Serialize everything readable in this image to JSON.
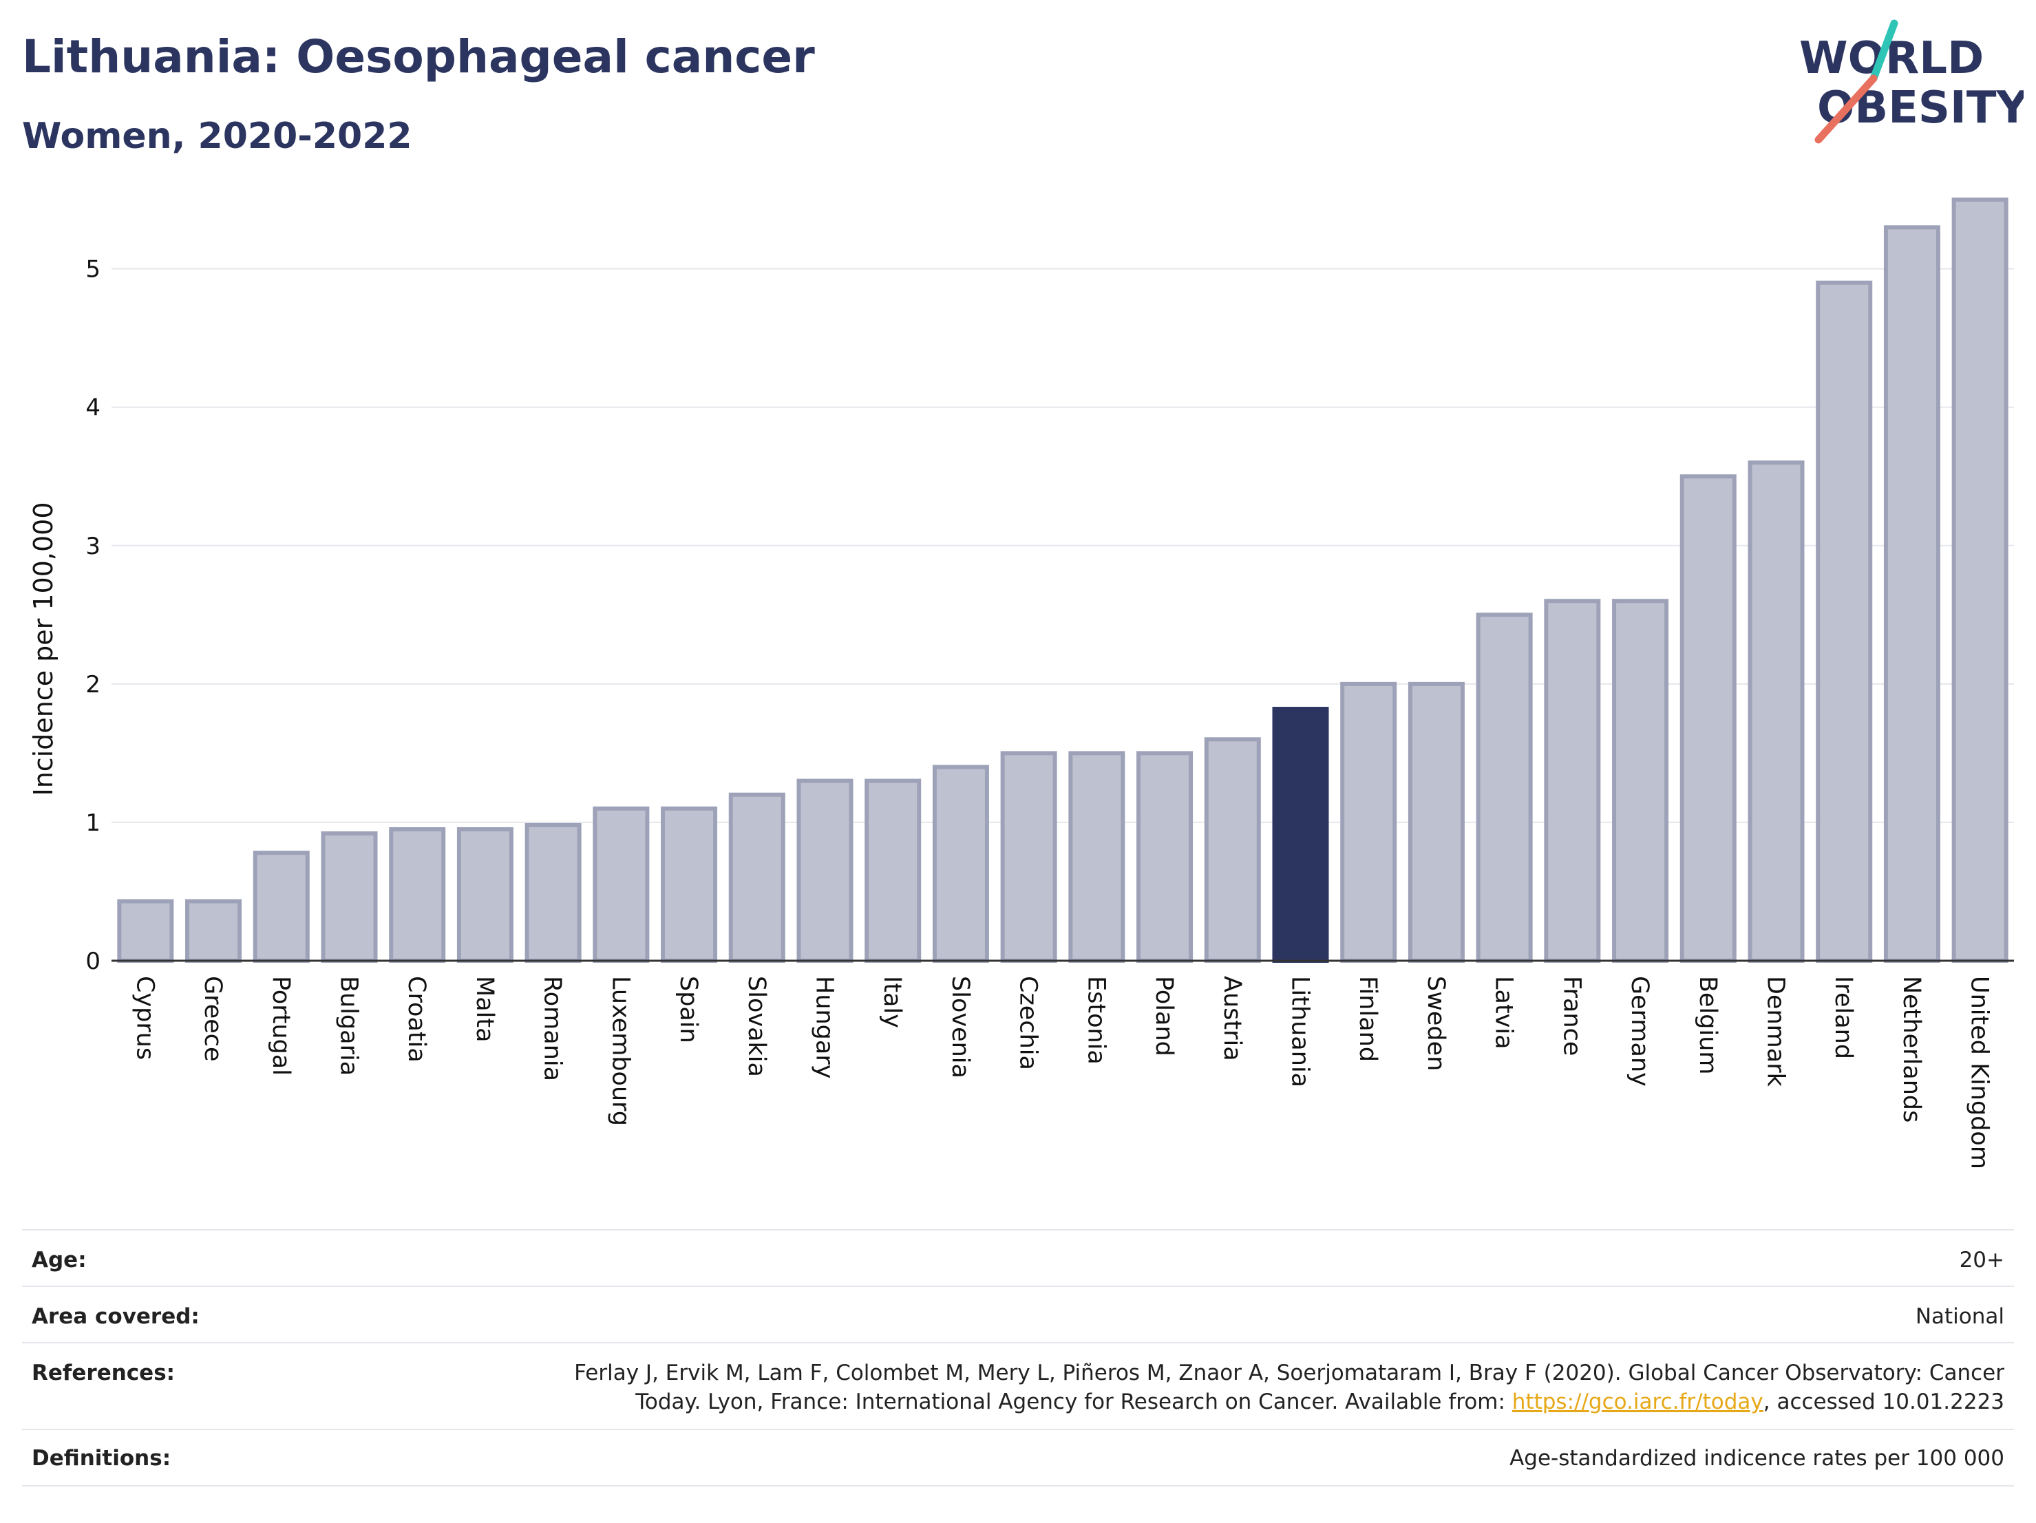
{
  "header": {
    "title": "Lithuania: Oesophageal cancer",
    "subtitle": "Women, 2020-2022"
  },
  "logo": {
    "line1": "WORLD",
    "line2": "OBESITY",
    "colors": {
      "text": "#2b3560",
      "slash_teal": "#2ec4b6",
      "slash_coral": "#e8705f"
    }
  },
  "chart_data": {
    "type": "bar",
    "title": "Lithuania: Oesophageal cancer",
    "subtitle": "Women, 2020-2022",
    "xlabel": "",
    "ylabel": "Incidence per 100,000",
    "ylim": [
      0,
      5.6
    ],
    "yticks": [
      0,
      1,
      2,
      3,
      4,
      5
    ],
    "grid": true,
    "legend": "none",
    "highlight": "Lithuania",
    "colors": {
      "bar": "#bec1cf",
      "bar_outline": "#9da2b8",
      "highlight": "#2b3560",
      "grid": "#e6e7ec",
      "axis": "#333333"
    },
    "categories": [
      "Cyprus",
      "Greece",
      "Portugal",
      "Bulgaria",
      "Croatia",
      "Malta",
      "Romania",
      "Luxembourg",
      "Spain",
      "Slovakia",
      "Hungary",
      "Italy",
      "Slovenia",
      "Czechia",
      "Estonia",
      "Poland",
      "Austria",
      "Lithuania",
      "Finland",
      "Sweden",
      "Latvia",
      "France",
      "Germany",
      "Belgium",
      "Denmark",
      "Ireland",
      "Netherlands",
      "United Kingdom"
    ],
    "values": [
      0.43,
      0.43,
      0.78,
      0.92,
      0.95,
      0.95,
      0.98,
      1.1,
      1.1,
      1.2,
      1.3,
      1.3,
      1.4,
      1.5,
      1.5,
      1.5,
      1.6,
      1.82,
      2.0,
      2.0,
      2.5,
      2.6,
      2.6,
      3.5,
      3.6,
      4.9,
      5.3,
      5.5
    ]
  },
  "info": {
    "age": {
      "label": "Age:",
      "value": "20+"
    },
    "area": {
      "label": "Area covered:",
      "value": "National"
    },
    "references": {
      "label": "References:",
      "text_line1": "Ferlay J, Ervik M, Lam F, Colombet M, Mery L, Piñeros M, Znaor A, Soerjomataram I, Bray F (2020). Global Cancer Observatory: Cancer",
      "text_line2_prefix": "Today. Lyon, France: International Agency for Research on Cancer. Available from: ",
      "link": "https://gco.iarc.fr/today",
      "text_line2_suffix": ", accessed 10.01.2223"
    },
    "definitions": {
      "label": "Definitions:",
      "value": "Age-standardized indicence rates per 100 000"
    }
  }
}
